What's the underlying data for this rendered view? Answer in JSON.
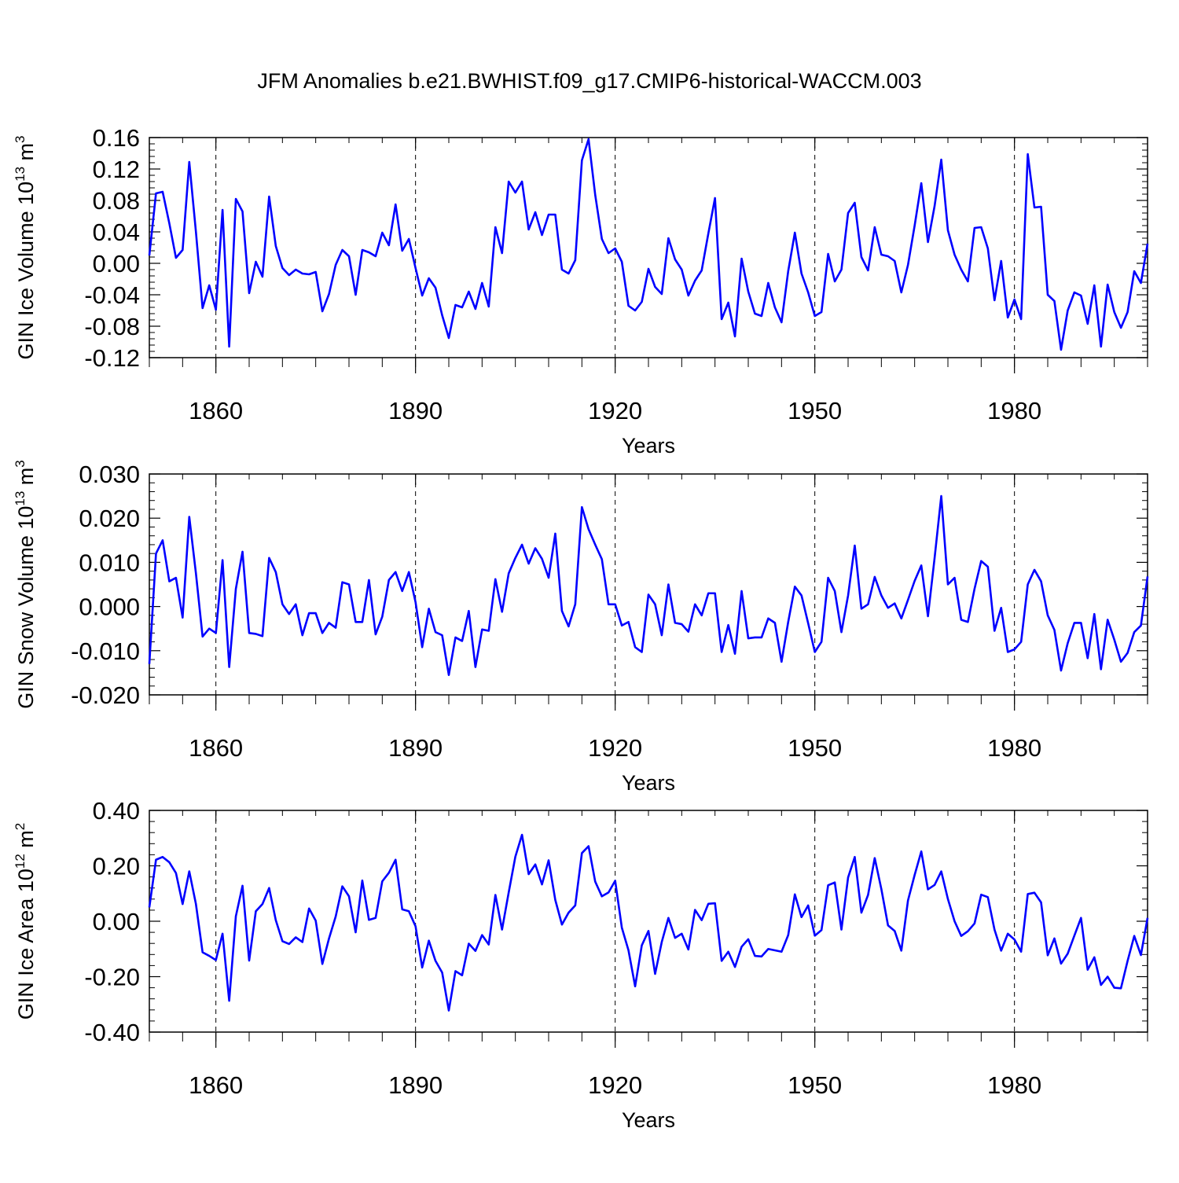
{
  "title": "JFM Anomalies b.e21.BWHIST.f09_g17.CMIP6-historical-WACCM.003",
  "colors": {
    "line": "#0000ff",
    "axis": "#000000",
    "grid": "#000000",
    "background": "#ffffff"
  },
  "chart_data": [
    {
      "type": "line",
      "name": "ice-volume",
      "ylabel": "GIN Ice Volume",
      "yunit_base": "10",
      "yunit_exp": "13",
      "yunit_unit": "m",
      "yunit_unit_exp": "3",
      "xlabel": "Years",
      "xlim": [
        1850,
        2000
      ],
      "ylim": [
        -0.12,
        0.16
      ],
      "yticks": [
        -0.12,
        -0.08,
        -0.04,
        0.0,
        0.04,
        0.08,
        0.12,
        0.16
      ],
      "yticklabels": [
        "-0.12",
        "-0.08",
        "-0.04",
        "0.00",
        "0.04",
        "0.08",
        "0.12",
        "0.16"
      ],
      "xticks": [
        1860,
        1890,
        1920,
        1950,
        1980
      ],
      "xticklabels": [
        "1860",
        "1890",
        "1920",
        "1950",
        "1980"
      ],
      "grid_x": true,
      "x_start": 1850,
      "values": [
        0.01,
        0.089,
        0.091,
        0.051,
        0.007,
        0.017,
        0.129,
        0.04,
        -0.057,
        -0.028,
        -0.059,
        0.068,
        -0.106,
        0.082,
        0.066,
        -0.038,
        0.002,
        -0.017,
        0.085,
        0.022,
        -0.006,
        -0.015,
        -0.008,
        -0.013,
        -0.014,
        -0.011,
        -0.061,
        -0.039,
        -0.002,
        0.017,
        0.009,
        -0.04,
        0.017,
        0.014,
        0.009,
        0.039,
        0.023,
        0.075,
        0.016,
        0.031,
        -0.006,
        -0.041,
        -0.019,
        -0.031,
        -0.066,
        -0.095,
        -0.053,
        -0.056,
        -0.036,
        -0.058,
        -0.025,
        -0.055,
        0.046,
        0.013,
        0.104,
        0.09,
        0.104,
        0.043,
        0.065,
        0.036,
        0.062,
        0.062,
        -0.008,
        -0.013,
        0.004,
        0.131,
        0.158,
        0.087,
        0.031,
        0.013,
        0.019,
        0.002,
        -0.054,
        -0.06,
        -0.049,
        -0.007,
        -0.03,
        -0.039,
        0.032,
        0.005,
        -0.008,
        -0.041,
        -0.022,
        -0.009,
        0.038,
        0.083,
        -0.071,
        -0.05,
        -0.093,
        0.006,
        -0.036,
        -0.064,
        -0.067,
        -0.025,
        -0.056,
        -0.075,
        -0.01,
        0.039,
        -0.013,
        -0.037,
        -0.067,
        -0.062,
        0.012,
        -0.023,
        -0.008,
        0.064,
        0.077,
        0.008,
        -0.009,
        0.046,
        0.011,
        0.009,
        0.003,
        -0.037,
        -0.002,
        0.048,
        0.102,
        0.027,
        0.073,
        0.132,
        0.042,
        0.011,
        -0.008,
        -0.023,
        0.045,
        0.046,
        0.019,
        -0.047,
        0.003,
        -0.069,
        -0.046,
        -0.071,
        0.139,
        0.071,
        0.072,
        -0.04,
        -0.048,
        -0.11,
        -0.06,
        -0.037,
        -0.041,
        -0.077,
        -0.028,
        -0.106,
        -0.027,
        -0.062,
        -0.082,
        -0.062,
        -0.01,
        -0.025,
        0.025
      ]
    },
    {
      "type": "line",
      "name": "snow-volume",
      "ylabel": "GIN Snow Volume",
      "yunit_base": "10",
      "yunit_exp": "13",
      "yunit_unit": "m",
      "yunit_unit_exp": "3",
      "xlabel": "Years",
      "xlim": [
        1850,
        2000
      ],
      "ylim": [
        -0.02,
        0.03
      ],
      "yticks": [
        -0.02,
        -0.01,
        0.0,
        0.01,
        0.02,
        0.03
      ],
      "yticklabels": [
        "-0.020",
        "-0.010",
        "0.000",
        "0.010",
        "0.020",
        "0.030"
      ],
      "xticks": [
        1860,
        1890,
        1920,
        1950,
        1980
      ],
      "xticklabels": [
        "1860",
        "1890",
        "1920",
        "1950",
        "1980"
      ],
      "grid_x": true,
      "x_start": 1850,
      "values": [
        -0.013,
        0.012,
        0.015,
        0.0057,
        0.0065,
        -0.0025,
        0.0203,
        0.0075,
        -0.0068,
        -0.005,
        -0.006,
        0.0105,
        -0.0137,
        0.004,
        0.0124,
        -0.006,
        -0.0062,
        -0.0067,
        0.011,
        0.0078,
        0.0005,
        -0.0017,
        0.0005,
        -0.0065,
        -0.0015,
        -0.0015,
        -0.006,
        -0.0037,
        -0.0048,
        0.0055,
        0.005,
        -0.0035,
        -0.0035,
        0.006,
        -0.0063,
        -0.0023,
        0.006,
        0.0078,
        0.0035,
        0.0078,
        0.001,
        -0.0092,
        -0.0005,
        -0.0058,
        -0.0065,
        -0.0155,
        -0.007,
        -0.0078,
        -0.001,
        -0.0137,
        -0.0052,
        -0.0055,
        0.0062,
        -0.0012,
        0.0075,
        0.011,
        0.014,
        0.0097,
        0.0132,
        0.0108,
        0.0065,
        0.0165,
        -0.001,
        -0.0045,
        0.0005,
        0.0225,
        0.0175,
        0.014,
        0.0107,
        0.0005,
        0.0005,
        -0.0043,
        -0.0035,
        -0.0092,
        -0.0103,
        0.0027,
        0.0005,
        -0.0065,
        0.005,
        -0.0037,
        -0.004,
        -0.0057,
        0.0005,
        -0.002,
        0.003,
        0.003,
        -0.0103,
        -0.0042,
        -0.0107,
        0.0035,
        -0.0072,
        -0.007,
        -0.007,
        -0.0027,
        -0.0037,
        -0.0125,
        -0.0035,
        0.0045,
        0.0025,
        -0.0038,
        -0.0103,
        -0.008,
        0.0065,
        0.0035,
        -0.0058,
        0.0025,
        0.0138,
        -0.0005,
        0.0005,
        0.0067,
        0.0025,
        -0.0003,
        0.0007,
        -0.0027,
        0.0015,
        0.0058,
        0.0093,
        -0.0022,
        0.011,
        0.025,
        0.005,
        0.0065,
        -0.003,
        -0.0035,
        0.004,
        0.0103,
        0.009,
        -0.0055,
        -0.0003,
        -0.0103,
        -0.0097,
        -0.008,
        0.005,
        0.0083,
        0.0057,
        -0.002,
        -0.0053,
        -0.0145,
        -0.0083,
        -0.0037,
        -0.0037,
        -0.0117,
        -0.0017,
        -0.0142,
        -0.003,
        -0.0075,
        -0.0125,
        -0.0105,
        -0.0058,
        -0.0043,
        0.0068
      ]
    },
    {
      "type": "line",
      "name": "ice-area",
      "ylabel": "GIN Ice Area",
      "yunit_base": "10",
      "yunit_exp": "12",
      "yunit_unit": "m",
      "yunit_unit_exp": "2",
      "xlabel": "Years",
      "xlim": [
        1850,
        2000
      ],
      "ylim": [
        -0.4,
        0.4
      ],
      "yticks": [
        -0.4,
        -0.2,
        0.0,
        0.2,
        0.4
      ],
      "yticklabels": [
        "-0.40",
        "-0.20",
        "0.00",
        "0.20",
        "0.40"
      ],
      "xticks": [
        1860,
        1890,
        1920,
        1950,
        1980
      ],
      "xticklabels": [
        "1860",
        "1890",
        "1920",
        "1950",
        "1980"
      ],
      "grid_x": true,
      "x_start": 1850,
      "values": [
        0.05,
        0.222,
        0.232,
        0.213,
        0.174,
        0.062,
        0.18,
        0.062,
        -0.112,
        -0.125,
        -0.14,
        -0.045,
        -0.287,
        0.018,
        0.128,
        -0.142,
        0.036,
        0.062,
        0.12,
        0.004,
        -0.072,
        -0.082,
        -0.058,
        -0.075,
        0.046,
        0.002,
        -0.154,
        -0.062,
        0.017,
        0.126,
        0.09,
        -0.04,
        0.147,
        0.005,
        0.012,
        0.144,
        0.175,
        0.222,
        0.043,
        0.036,
        -0.018,
        -0.167,
        -0.07,
        -0.143,
        -0.185,
        -0.322,
        -0.18,
        -0.195,
        -0.081,
        -0.107,
        -0.05,
        -0.084,
        0.095,
        -0.03,
        0.104,
        0.233,
        0.312,
        0.17,
        0.205,
        0.133,
        0.22,
        0.077,
        -0.012,
        0.031,
        0.057,
        0.246,
        0.271,
        0.143,
        0.09,
        0.104,
        0.146,
        -0.023,
        -0.105,
        -0.235,
        -0.087,
        -0.035,
        -0.19,
        -0.075,
        0.012,
        -0.06,
        -0.045,
        -0.102,
        0.041,
        0.004,
        0.063,
        0.065,
        -0.143,
        -0.11,
        -0.165,
        -0.092,
        -0.065,
        -0.125,
        -0.127,
        -0.1,
        -0.105,
        -0.11,
        -0.05,
        0.097,
        0.015,
        0.057,
        -0.052,
        -0.032,
        0.13,
        0.14,
        -0.03,
        0.158,
        0.232,
        0.031,
        0.095,
        0.228,
        0.116,
        -0.015,
        -0.035,
        -0.106,
        0.075,
        0.167,
        0.252,
        0.115,
        0.131,
        0.18,
        0.08,
        0.0,
        -0.053,
        -0.036,
        -0.008,
        0.096,
        0.087,
        -0.03,
        -0.106,
        -0.045,
        -0.066,
        -0.11,
        0.098,
        0.103,
        0.068,
        -0.123,
        -0.062,
        -0.153,
        -0.117,
        -0.052,
        0.012,
        -0.175,
        -0.13,
        -0.23,
        -0.2,
        -0.24,
        -0.242,
        -0.143,
        -0.053,
        -0.122,
        0.012
      ]
    }
  ]
}
